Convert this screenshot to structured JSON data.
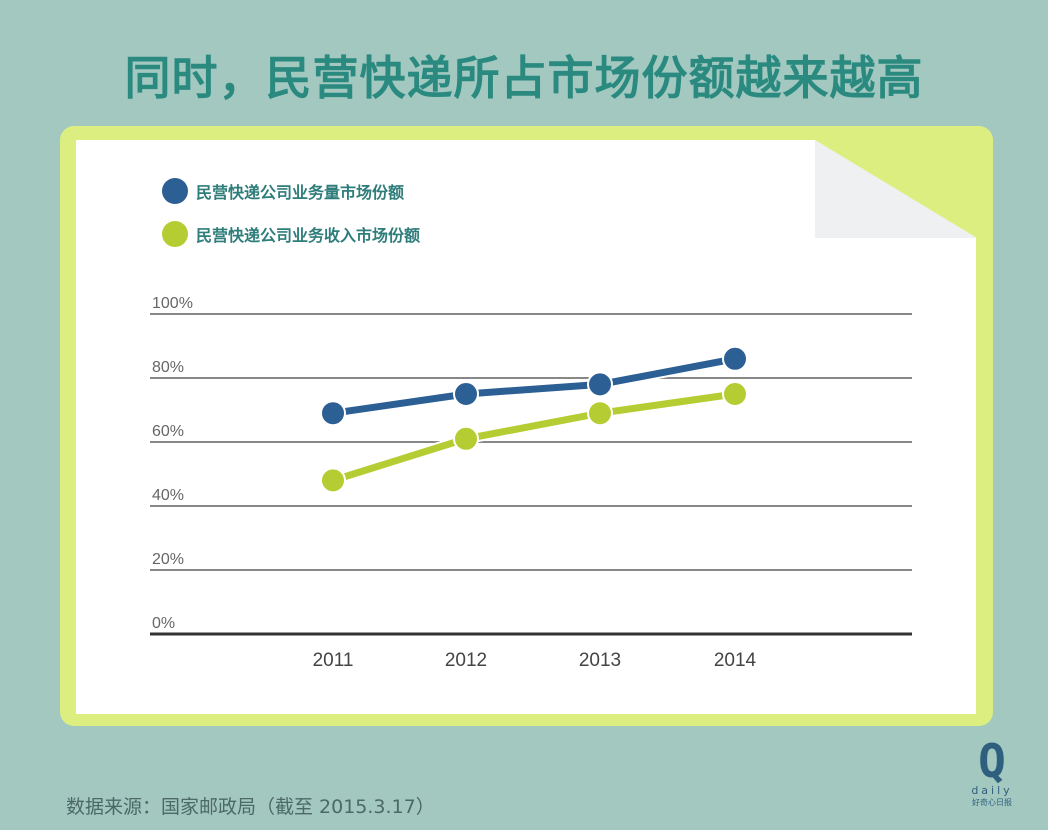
{
  "title": "同时，民营快递所占市场份额越来越高",
  "source": "数据来源：国家邮政局（截至 2015.3.17）",
  "logo": {
    "mark": "Q",
    "word": "daily",
    "sub": "好奇心日报"
  },
  "colors": {
    "background": "#a3c8c0",
    "title": "#2b8a80",
    "frame": "#dcee80",
    "series_volume": "#2c5f94",
    "series_revenue": "#b5cd32"
  },
  "chart_data": {
    "type": "line",
    "title": "",
    "xlabel": "",
    "ylabel": "",
    "categories": [
      "2011",
      "2012",
      "2013",
      "2014"
    ],
    "ylim": [
      0,
      100
    ],
    "yticks": [
      0,
      20,
      40,
      60,
      80,
      100
    ],
    "ytick_labels": [
      "0%",
      "20%",
      "40%",
      "60%",
      "80%",
      "100%"
    ],
    "grid": true,
    "legend": "top-left",
    "series": [
      {
        "name": "民营快递公司业务量市场份额",
        "color": "#2c5f94",
        "values": [
          69,
          75,
          78,
          86
        ]
      },
      {
        "name": "民营快递公司业务收入市场份额",
        "color": "#b5cd32",
        "values": [
          48,
          61,
          69,
          75
        ]
      }
    ]
  }
}
